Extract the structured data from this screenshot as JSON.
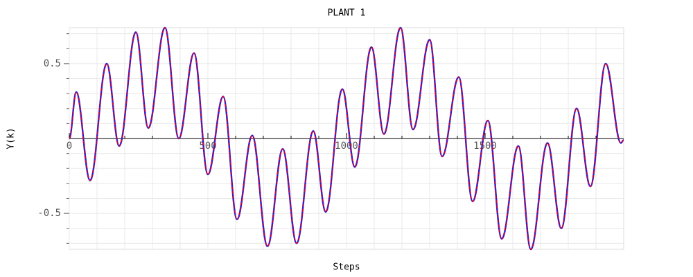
{
  "chart_data": {
    "type": "line",
    "title": "PLANT 1",
    "x_label": "Steps",
    "y_label": "Y(k)",
    "x": [
      0,
      25,
      75,
      135,
      180,
      240,
      285,
      345,
      395,
      450,
      500,
      555,
      605,
      660,
      715,
      770,
      820,
      880,
      925,
      985,
      1030,
      1090,
      1135,
      1195,
      1240,
      1300,
      1345,
      1405,
      1455,
      1510,
      1560,
      1620,
      1665,
      1725,
      1775,
      1830,
      1880,
      1935,
      1990,
      2000
    ],
    "series": [
      {
        "color": "#2020e0",
        "values": [
          0,
          0.31,
          -0.28,
          0.5,
          -0.05,
          0.71,
          0.07,
          0.74,
          0,
          0.57,
          -0.24,
          0.28,
          -0.54,
          0.02,
          -0.72,
          -0.07,
          -0.7,
          0.05,
          -0.49,
          0.33,
          -0.19,
          0.61,
          0.03,
          0.74,
          0.06,
          0.66,
          -0.12,
          0.41,
          -0.42,
          0.12,
          -0.67,
          -0.05,
          -0.74,
          -0.03,
          -0.6,
          0.2,
          -0.32,
          0.5,
          -0.03,
          -0.01
        ]
      },
      {
        "color": "#e00020",
        "values": [
          0,
          0.31,
          -0.28,
          0.5,
          -0.05,
          0.71,
          0.07,
          0.74,
          0,
          0.57,
          -0.24,
          0.28,
          -0.54,
          0.02,
          -0.72,
          -0.07,
          -0.7,
          0.05,
          -0.49,
          0.33,
          -0.19,
          0.61,
          0.03,
          0.74,
          0.06,
          0.66,
          -0.12,
          0.41,
          -0.42,
          0.12,
          -0.67,
          -0.05,
          -0.74,
          -0.03,
          -0.6,
          0.2,
          -0.32,
          0.5,
          -0.03,
          -0.01
        ]
      }
    ],
    "xlim": [
      0,
      2000
    ],
    "ylim": [
      -0.74,
      0.74
    ],
    "xticks": [
      0,
      500,
      1000,
      1500
    ],
    "yticks": [
      -0.5,
      0.5
    ],
    "xminorticks": [
      100,
      200,
      300,
      400,
      600,
      700,
      800,
      900,
      1100,
      1200,
      1300,
      1400,
      1600,
      1700,
      1800,
      1900
    ],
    "yminorticks": [
      -0.7,
      -0.6,
      -0.4,
      -0.3,
      -0.2,
      -0.1,
      0.1,
      0.2,
      0.3,
      0.4,
      0.6,
      0.7
    ],
    "grid": true
  }
}
